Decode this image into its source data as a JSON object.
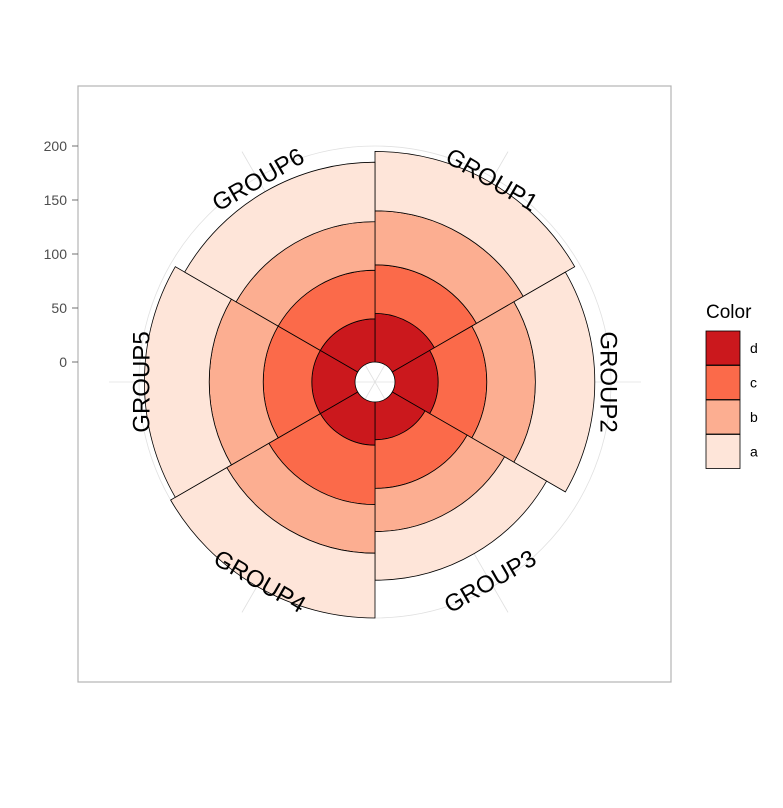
{
  "chart_data": {
    "type": "bar",
    "coordinate_system": "polar",
    "stacked": true,
    "categories": [
      "GROUP1",
      "GROUP2",
      "GROUP3",
      "GROUP4",
      "GROUP5",
      "GROUP6"
    ],
    "series": [
      {
        "name": "d",
        "color": "#CB181D",
        "values": [
          45,
          40,
          35,
          40,
          40,
          40
        ]
      },
      {
        "name": "c",
        "color": "#FB6A4A",
        "values": [
          45,
          45,
          45,
          55,
          45,
          45
        ]
      },
      {
        "name": "b",
        "color": "#FCAE91",
        "values": [
          50,
          45,
          40,
          45,
          50,
          45
        ]
      },
      {
        "name": "a",
        "color": "#FEE5D9",
        "values": [
          55,
          55,
          45,
          60,
          60,
          55
        ]
      }
    ],
    "r_ticks": [
      0,
      50,
      100,
      150,
      200
    ],
    "r_tick_labels": [
      "0",
      "50",
      "100",
      "150",
      "200"
    ],
    "rlim": [
      -15,
      250
    ],
    "legend": {
      "title": "Color",
      "placement": "right",
      "entries": [
        "d",
        "c",
        "b",
        "a"
      ]
    },
    "grid": true
  }
}
